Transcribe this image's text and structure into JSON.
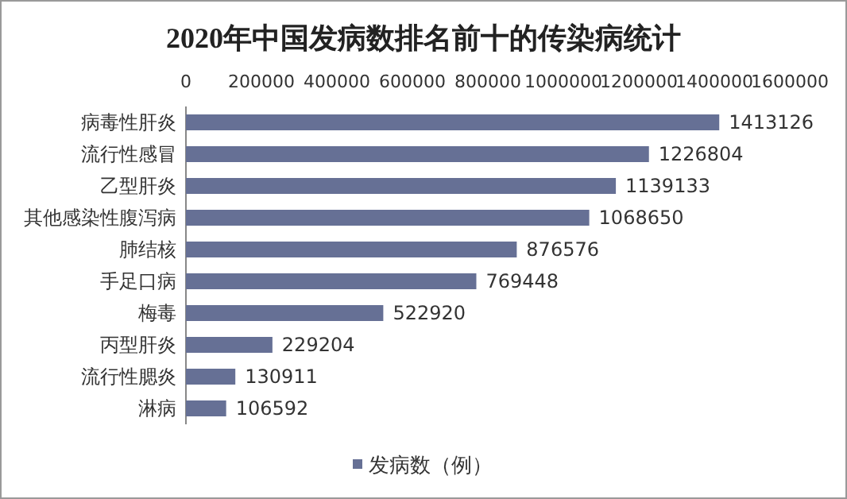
{
  "chart_data": {
    "type": "bar",
    "orientation": "horizontal",
    "title": "2020年中国发病数排名前十的传染病统计",
    "categories": [
      "病毒性肝炎",
      "流行性感冒",
      "乙型肝炎",
      "其他感染性腹泻病",
      "肺结核",
      "手足口病",
      "梅毒",
      "丙型肝炎",
      "流行性腮炎",
      "淋病"
    ],
    "series": [
      {
        "name": "发病数（例）",
        "color": "#667095",
        "values": [
          1413126,
          1226804,
          1139133,
          1068650,
          876576,
          769448,
          522920,
          229204,
          130911,
          106592
        ]
      }
    ],
    "xlim": [
      0,
      1600000
    ],
    "xticks": [
      0,
      200000,
      400000,
      600000,
      800000,
      1000000,
      1200000,
      1400000,
      1600000
    ],
    "data_labels": true,
    "legend": "bottom",
    "grid": false
  }
}
